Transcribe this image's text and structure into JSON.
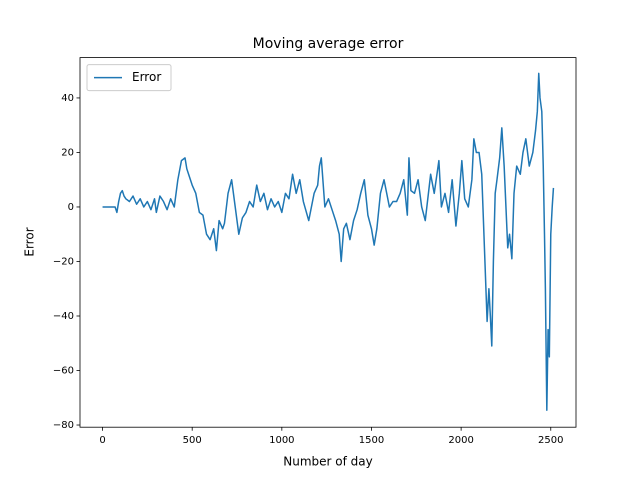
{
  "chart_data": {
    "type": "line",
    "title": "Moving average error",
    "xlabel": "Number of day",
    "ylabel": "Error",
    "x": [
      0,
      30,
      60,
      70,
      80,
      90,
      100,
      110,
      120,
      130,
      150,
      170,
      190,
      210,
      230,
      250,
      270,
      290,
      300,
      320,
      340,
      360,
      380,
      400,
      420,
      440,
      460,
      470,
      480,
      500,
      520,
      540,
      560,
      580,
      600,
      620,
      635,
      650,
      670,
      680,
      700,
      720,
      740,
      760,
      780,
      800,
      820,
      840,
      860,
      880,
      900,
      920,
      940,
      960,
      980,
      1000,
      1020,
      1040,
      1060,
      1080,
      1100,
      1120,
      1150,
      1180,
      1200,
      1210,
      1220,
      1240,
      1260,
      1280,
      1300,
      1320,
      1331,
      1345,
      1360,
      1380,
      1400,
      1420,
      1440,
      1460,
      1480,
      1500,
      1515,
      1530,
      1550,
      1570,
      1600,
      1620,
      1640,
      1660,
      1680,
      1700,
      1709,
      1720,
      1740,
      1760,
      1780,
      1800,
      1830,
      1850,
      1876,
      1890,
      1910,
      1930,
      1950,
      1971,
      1990,
      2004,
      2020,
      2040,
      2060,
      2071,
      2085,
      2100,
      2115,
      2130,
      2145,
      2155,
      2163,
      2171,
      2180,
      2190,
      2200,
      2215,
      2227,
      2240,
      2250,
      2260,
      2270,
      2283,
      2295,
      2310,
      2330,
      2345,
      2361,
      2380,
      2400,
      2415,
      2425,
      2433,
      2440,
      2450,
      2458,
      2465,
      2470,
      2478,
      2485,
      2492,
      2500,
      2508,
      2515
    ],
    "values": [
      0,
      0,
      0,
      0,
      -2,
      2,
      5,
      6,
      4,
      3,
      2,
      4,
      1,
      3,
      0,
      2,
      -1,
      3,
      -2,
      4,
      2,
      -1,
      3,
      0,
      10,
      17,
      18,
      14,
      12,
      8,
      5,
      -2,
      -3,
      -10,
      -12,
      -8,
      -16,
      -5,
      -8,
      -6,
      5,
      10,
      0,
      -10,
      -4,
      -2,
      2,
      0,
      8,
      2,
      5,
      -1,
      3,
      0,
      2,
      -2,
      5,
      3,
      12,
      5,
      10,
      2,
      -5,
      5,
      8,
      15,
      18,
      0,
      3,
      -1,
      -5,
      -10,
      -20,
      -8,
      -6,
      -12,
      -5,
      -1,
      5,
      10,
      -3,
      -8,
      -14,
      -8,
      5,
      10,
      0,
      2,
      2,
      5,
      10,
      -3,
      18,
      6,
      5,
      10,
      0,
      -5,
      12,
      5,
      17,
      0,
      5,
      -2,
      10,
      -7,
      5,
      17,
      3,
      0,
      10,
      25,
      20,
      20,
      12,
      -15,
      -42,
      -30,
      -40,
      -51,
      -20,
      5,
      10,
      18,
      29,
      15,
      0,
      -15,
      -10,
      -19,
      5,
      15,
      12,
      20,
      25,
      15,
      20,
      28,
      35,
      49,
      40,
      35,
      15,
      -10,
      -30,
      -74.6,
      -45,
      -55,
      -10,
      0,
      7
    ],
    "color": "#1f77b4",
    "xlim": [
      -125.75,
      2640.75
    ],
    "ylim": [
      -80.8,
      54.8
    ],
    "xticks": [
      0,
      500,
      1000,
      1500,
      2000,
      2500
    ],
    "yticks": [
      {
        "value": -80,
        "label": "−80"
      },
      {
        "value": -60,
        "label": "−60"
      },
      {
        "value": -40,
        "label": "−40"
      },
      {
        "value": -20,
        "label": "−20"
      },
      0,
      20,
      40
    ],
    "legend": {
      "loc": "upper left",
      "labels": [
        "Error"
      ]
    }
  }
}
